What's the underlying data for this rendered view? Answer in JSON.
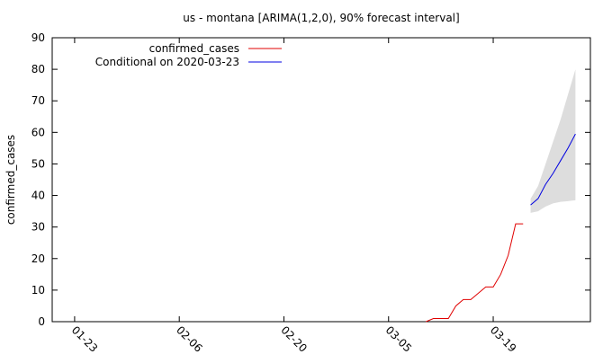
{
  "chart_data": {
    "type": "line",
    "title": "us - montana [ARIMA(1,2,0), 90% forecast interval]",
    "y_label": "confirmed_cases",
    "xlim": [
      "01-20",
      "04-01"
    ],
    "xticks": [
      "01-23",
      "02-06",
      "02-20",
      "03-05",
      "03-19"
    ],
    "ylim": [
      0,
      90
    ],
    "yticks": [
      0,
      10,
      20,
      30,
      40,
      50,
      60,
      70,
      80,
      90
    ],
    "legend": "top-left",
    "series": [
      {
        "name": "confirmed_cases",
        "color": "#e00000",
        "x": [
          "03-10",
          "03-11",
          "03-12",
          "03-13",
          "03-14",
          "03-15",
          "03-16",
          "03-17",
          "03-18",
          "03-19",
          "03-20",
          "03-21",
          "03-22",
          "03-23"
        ],
        "values": [
          0,
          1,
          1,
          1,
          5,
          7,
          7,
          9,
          11,
          11,
          15,
          21,
          31,
          31
        ]
      },
      {
        "name": "Conditional on 2020-03-23",
        "color": "#0000e0",
        "x": [
          "03-24",
          "03-25",
          "03-26",
          "03-27",
          "03-28",
          "03-29",
          "03-30"
        ],
        "values": [
          37,
          39,
          43.5,
          47,
          51,
          55,
          59.5
        ]
      }
    ],
    "band": {
      "color": "#dddddd",
      "x": [
        "03-24",
        "03-25",
        "03-26",
        "03-27",
        "03-28",
        "03-29",
        "03-30"
      ],
      "lower": [
        34.5,
        35,
        36.5,
        37.5,
        38,
        38.2,
        38.5
      ],
      "upper": [
        39,
        43,
        50,
        57,
        64,
        72,
        80
      ]
    }
  }
}
